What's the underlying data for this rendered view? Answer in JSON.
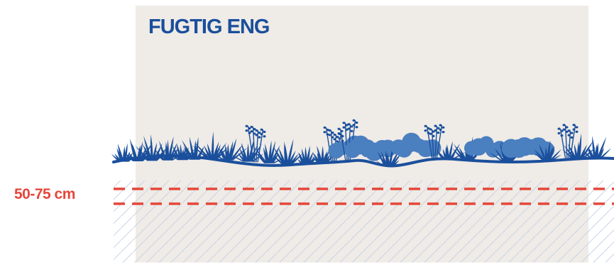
{
  "title": "FUGTIG ENG",
  "depth_label": "50-75 cm",
  "colors": {
    "background_panel": "#efebe6",
    "plants": "#1a4f9c",
    "plants_light": "#4a7fc0",
    "depth_lines": "#e5473a",
    "hatch": "#c9d3e6"
  },
  "icons": [
    "meadow-vegetation",
    "ground-line",
    "water-table-lines",
    "soil-hatch"
  ]
}
